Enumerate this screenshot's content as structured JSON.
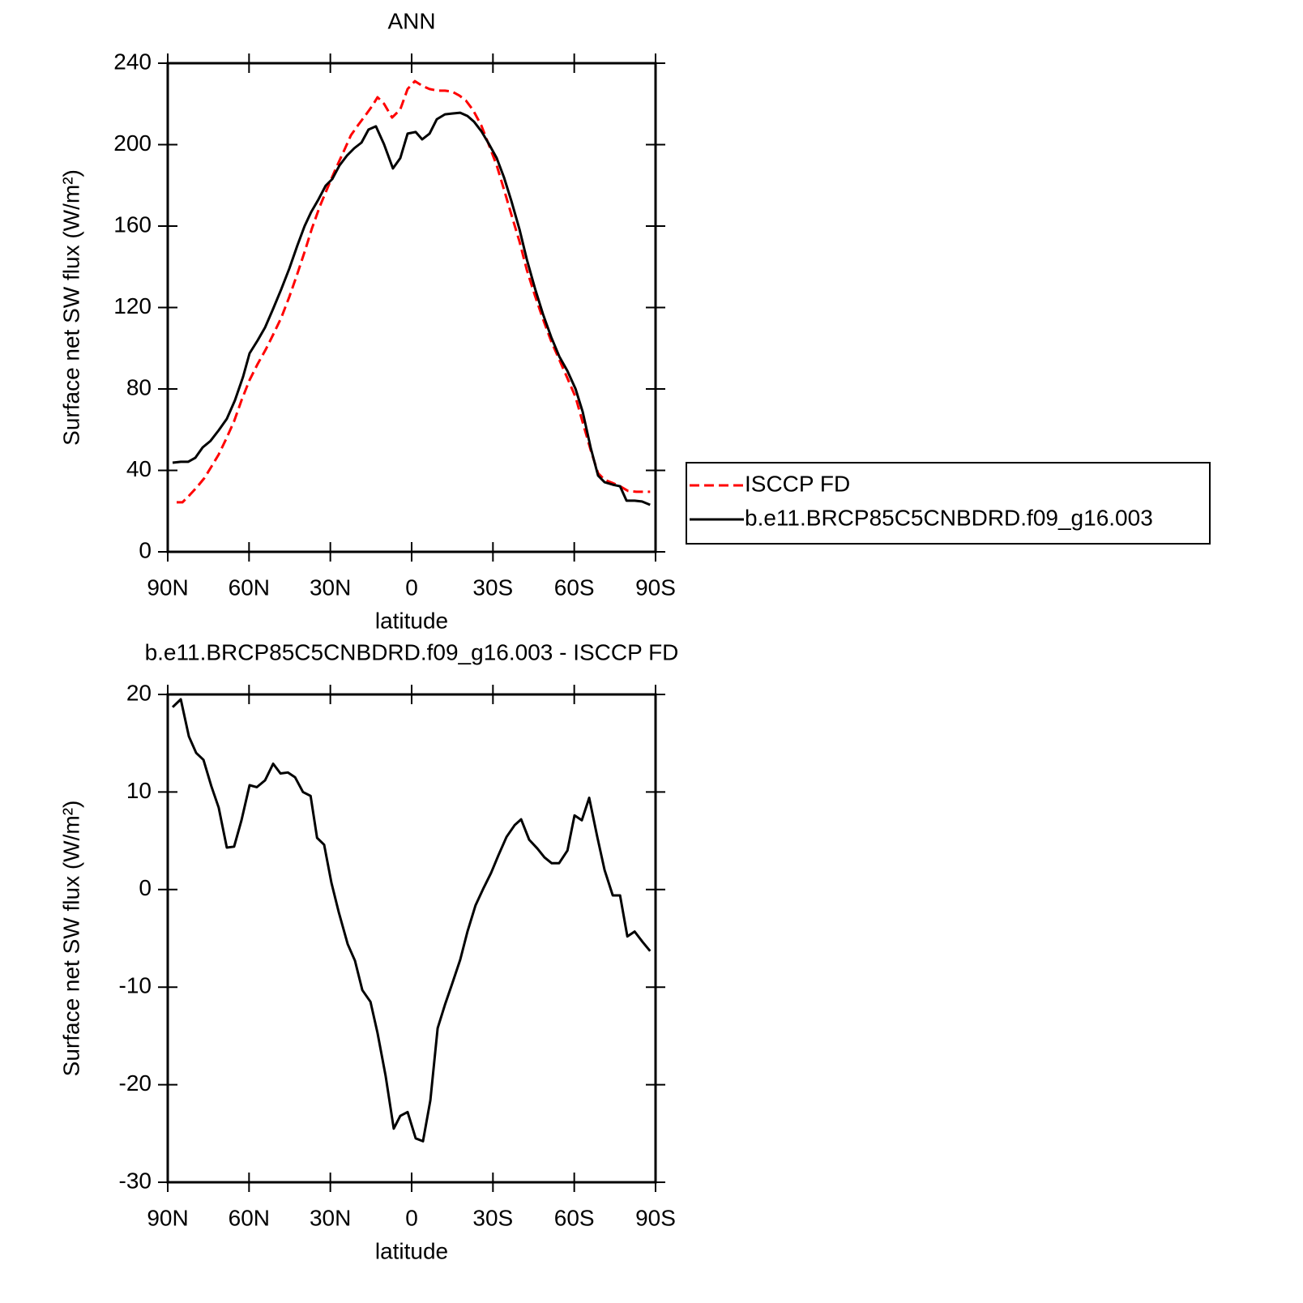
{
  "chart_data": [
    {
      "type": "line",
      "title": "ANN",
      "xlabel": "latitude",
      "ylabel": "Surface net SW flux (W/m²)",
      "xlim": [
        90,
        -90
      ],
      "xticks": [
        {
          "value": 90,
          "label": "90N"
        },
        {
          "value": 60,
          "label": "60N"
        },
        {
          "value": 30,
          "label": "30N"
        },
        0,
        {
          "value": -30,
          "label": "30S"
        },
        {
          "value": -60,
          "label": "60S"
        },
        {
          "value": -90,
          "label": "90S"
        }
      ],
      "ylim": [
        0,
        240
      ],
      "yticks": [
        0,
        40,
        80,
        120,
        160,
        200,
        240
      ],
      "legend": "right",
      "series": [
        {
          "name": "ISCCP FD",
          "color": "#ff0000",
          "dash": true,
          "x": [
            86.7,
            84.6,
            81.9,
            79.2,
            76.5,
            73.9,
            71.2,
            68.5,
            65.5,
            62.8,
            59.8,
            56.8,
            53.8,
            50.8,
            48.1,
            45.1,
            42.2,
            39.5,
            36.8,
            33.8,
            30.8,
            28.1,
            25.1,
            22.4,
            19.7,
            17.0,
            14.4,
            12.6,
            10.2,
            7.2,
            4.2,
            1.5,
            -1.2,
            -3.9,
            -6.6,
            -9.6,
            -12.3,
            -14.9,
            -17.6,
            -20.0,
            -22.7,
            -25.7,
            -28.4,
            -31.4,
            -34.1,
            -36.8,
            -39.8,
            -42.5,
            -45.5,
            -48.5,
            -51.5,
            -54.5,
            -57.5,
            -60.5,
            -63.1,
            -66.1,
            -68.8,
            -71.2,
            -74.2,
            -76.9,
            -79.9,
            -82.9,
            -85.6,
            -88.0
          ],
          "values": [
            24.3,
            24.3,
            27.9,
            31.8,
            36.2,
            41.8,
            47.8,
            55.3,
            64.1,
            74.4,
            84.4,
            92.3,
            99.5,
            107.5,
            115.0,
            125.4,
            136.5,
            147.3,
            158.8,
            170.0,
            179.5,
            187.9,
            196.6,
            204.6,
            209.7,
            214.5,
            219.3,
            223.3,
            220.1,
            213.3,
            217.3,
            227.3,
            231.2,
            228.9,
            227.3,
            226.5,
            226.5,
            226.1,
            224.1,
            221.7,
            216.9,
            209.4,
            200.2,
            189.8,
            177.9,
            165.6,
            152.4,
            138.5,
            125.8,
            114.2,
            103.5,
            94.3,
            85.2,
            76.0,
            63.7,
            49.8,
            38.6,
            35.4,
            33.8,
            32.2,
            29.9,
            29.5,
            29.5,
            29.5
          ]
        },
        {
          "name": "b.e11.BRCP85C5CNBDRD.f09_g16.003",
          "color": "#000000",
          "dash": false,
          "x": [
            88.2,
            85.2,
            82.5,
            79.8,
            77.1,
            74.2,
            71.2,
            68.2,
            65.2,
            62.2,
            59.8,
            56.8,
            54.1,
            51.1,
            48.1,
            45.1,
            42.2,
            39.5,
            37.1,
            34.4,
            31.7,
            29.3,
            26.6,
            23.9,
            21.2,
            18.5,
            15.9,
            13.2,
            10.2,
            6.9,
            4.2,
            1.5,
            -1.5,
            -3.9,
            -6.6,
            -9.3,
            -12.3,
            -14.9,
            -17.9,
            -20.6,
            -23.0,
            -25.7,
            -28.4,
            -31.4,
            -34.1,
            -36.8,
            -39.8,
            -42.5,
            -45.5,
            -48.5,
            -51.5,
            -54.5,
            -57.5,
            -60.5,
            -63.1,
            -66.1,
            -68.8,
            -71.2,
            -74.2,
            -76.9,
            -79.3,
            -82.3,
            -85.0,
            -88.0
          ],
          "values": [
            43.8,
            44.2,
            44.2,
            46.2,
            51.3,
            54.5,
            59.7,
            65.3,
            74.4,
            86.0,
            97.5,
            103.9,
            110.2,
            119.4,
            129.0,
            139.3,
            150.4,
            160.0,
            166.8,
            173.1,
            179.9,
            183.1,
            189.8,
            194.6,
            198.2,
            201.0,
            207.4,
            209.0,
            200.2,
            188.3,
            193.4,
            205.4,
            206.2,
            202.6,
            205.4,
            212.5,
            214.9,
            215.3,
            215.7,
            214.1,
            211.3,
            206.6,
            200.6,
            193.4,
            183.9,
            172.3,
            158.4,
            143.7,
            129.4,
            116.6,
            105.5,
            95.9,
            88.8,
            80.0,
            68.9,
            50.9,
            37.4,
            34.2,
            33.0,
            32.2,
            25.1,
            25.1,
            24.7,
            23.1
          ]
        }
      ]
    },
    {
      "type": "line",
      "title": "b.e11.BRCP85C5CNBDRD.f09_g16.003 - ISCCP FD",
      "xlabel": "latitude",
      "ylabel": "Surface net SW flux (W/m²)",
      "xlim": [
        90,
        -90
      ],
      "xticks": [
        {
          "value": 90,
          "label": "90N"
        },
        {
          "value": 60,
          "label": "60N"
        },
        {
          "value": 30,
          "label": "30N"
        },
        0,
        {
          "value": -30,
          "label": "30S"
        },
        {
          "value": -60,
          "label": "60S"
        },
        {
          "value": -90,
          "label": "90S"
        }
      ],
      "ylim": [
        -30,
        20
      ],
      "yticks": [
        -30,
        -20,
        -10,
        0,
        10,
        20
      ],
      "series": [
        {
          "color": "#000000",
          "dash": false,
          "x": [
            88.2,
            85.2,
            82.2,
            79.5,
            76.8,
            73.9,
            71.2,
            68.2,
            65.5,
            62.8,
            59.8,
            57.1,
            54.1,
            51.1,
            48.4,
            45.7,
            43.0,
            40.1,
            37.3,
            34.9,
            32.3,
            29.6,
            26.9,
            23.6,
            20.9,
            18.2,
            15.2,
            12.6,
            9.6,
            6.6,
            4.2,
            1.5,
            -1.5,
            -4.2,
            -6.9,
            -9.6,
            -12.3,
            -14.9,
            -17.9,
            -20.6,
            -23.6,
            -26.6,
            -29.3,
            -32.0,
            -35.0,
            -38.0,
            -40.4,
            -43.4,
            -46.4,
            -49.0,
            -51.7,
            -54.4,
            -57.5,
            -60.1,
            -62.8,
            -65.5,
            -68.5,
            -71.2,
            -74.2,
            -76.9,
            -79.6,
            -82.3,
            -85.3,
            -88.0
          ],
          "values": [
            18.7,
            19.5,
            15.7,
            14.0,
            13.3,
            10.6,
            8.4,
            4.3,
            4.4,
            7.1,
            10.7,
            10.5,
            11.2,
            12.9,
            11.9,
            12.0,
            11.5,
            10.0,
            9.6,
            5.3,
            4.6,
            0.7,
            -2.3,
            -5.6,
            -7.3,
            -10.3,
            -11.5,
            -14.7,
            -19.1,
            -24.5,
            -23.2,
            -22.8,
            -25.5,
            -25.8,
            -21.6,
            -14.2,
            -11.8,
            -9.7,
            -7.2,
            -4.3,
            -1.6,
            0.2,
            1.7,
            3.5,
            5.4,
            6.6,
            7.2,
            5.1,
            4.2,
            3.3,
            2.7,
            2.7,
            4.0,
            7.6,
            7.1,
            9.4,
            5.4,
            2.0,
            -0.6,
            -0.6,
            -4.8,
            -4.3,
            -5.4,
            -6.3
          ]
        }
      ]
    }
  ]
}
